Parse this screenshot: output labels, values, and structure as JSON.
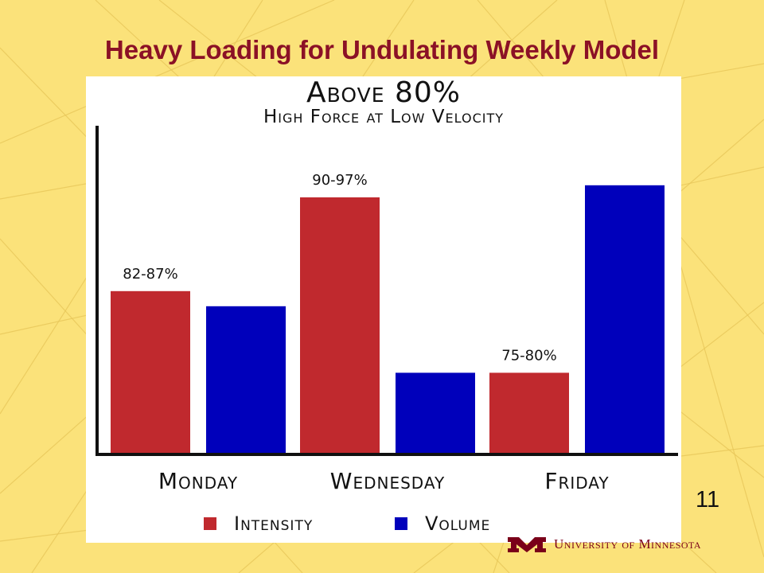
{
  "slide": {
    "title": "Heavy Loading for Undulating Weekly Model",
    "page_number": "11",
    "footer_org": "University of Minnesota"
  },
  "colors": {
    "background": "#fbe27a",
    "title": "#8b1126",
    "intensity": "#c0292e",
    "volume": "#0000bb",
    "brand": "#7a0019"
  },
  "chart_data": {
    "type": "bar",
    "title": "Above 80%",
    "subtitle": "High Force at Low Velocity",
    "categories": [
      "Monday",
      "Wednesday",
      "Friday"
    ],
    "series": [
      {
        "name": "Intensity",
        "values": [
          54,
          85,
          27
        ],
        "labels": [
          "82-87%",
          "90-97%",
          "75-80%"
        ]
      },
      {
        "name": "Volume",
        "values": [
          49,
          27,
          89
        ]
      }
    ],
    "ylim": [
      0,
      100
    ],
    "grid": false,
    "legend": "bottom"
  }
}
